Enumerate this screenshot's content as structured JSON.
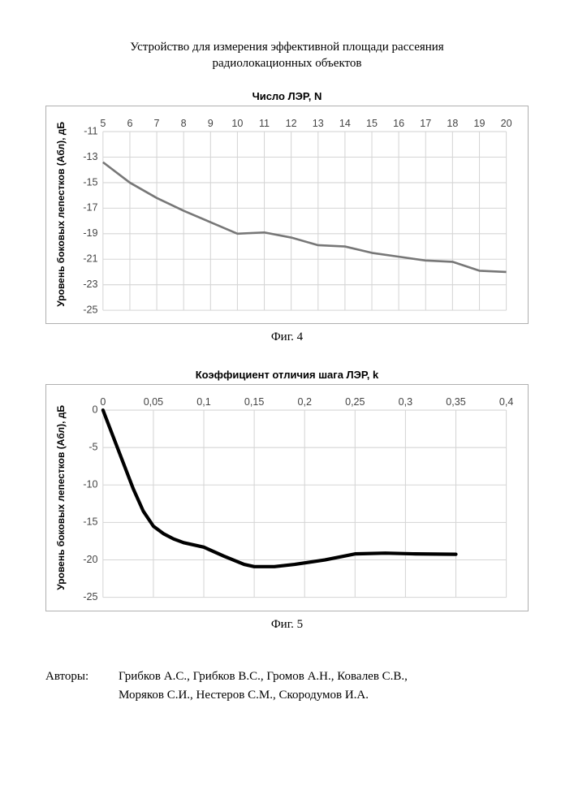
{
  "doc": {
    "title_line1": "Устройство для измерения эффективной площади рассеяния",
    "title_line2": "радиолокационных объектов"
  },
  "chart4": {
    "type": "line",
    "title": "Число ЛЭР, N",
    "ylabel": "Уровень боковых лепестков (Aбл), дБ",
    "fig_label": "Фиг. 4",
    "x_ticks": [
      5,
      6,
      7,
      8,
      9,
      10,
      11,
      12,
      13,
      14,
      15,
      16,
      17,
      18,
      19,
      20
    ],
    "y_ticks": [
      -11,
      -13,
      -15,
      -17,
      -19,
      -21,
      -23,
      -25
    ],
    "xlim": [
      5,
      20
    ],
    "ylim": [
      -25,
      -11
    ],
    "line_color": "#777777",
    "line_width": 2.5,
    "background_color": "#ffffff",
    "grid_color": "#d5d5d5",
    "tick_font_size": 12,
    "points": [
      [
        5,
        -13.4
      ],
      [
        6,
        -15.0
      ],
      [
        7,
        -16.2
      ],
      [
        8,
        -17.2
      ],
      [
        9,
        -18.1
      ],
      [
        10,
        -19.0
      ],
      [
        11,
        -18.9
      ],
      [
        12,
        -19.3
      ],
      [
        13,
        -19.9
      ],
      [
        14,
        -20.0
      ],
      [
        15,
        -20.5
      ],
      [
        16,
        -20.8
      ],
      [
        17,
        -21.1
      ],
      [
        18,
        -21.2
      ],
      [
        19,
        -21.9
      ],
      [
        20,
        -22.0
      ]
    ]
  },
  "chart5": {
    "type": "line",
    "title": "Коэффициент отличия шага ЛЭР, k",
    "ylabel": "Уровень боковых лепестков (Aбл), дБ",
    "fig_label": "Фиг. 5",
    "x_ticks": [
      0,
      0.05,
      0.1,
      0.15,
      0.2,
      0.25,
      0.3,
      0.35,
      0.4
    ],
    "x_tick_labels": [
      "0",
      "0,05",
      "0,1",
      "0,15",
      "0,2",
      "0,25",
      "0,3",
      "0,35",
      "0,4"
    ],
    "y_ticks": [
      0,
      -5,
      -10,
      -15,
      -20,
      -25
    ],
    "xlim": [
      0,
      0.4
    ],
    "ylim": [
      -25,
      0
    ],
    "line_color": "#000000",
    "line_width": 4,
    "background_color": "#ffffff",
    "grid_color": "#d5d5d5",
    "tick_font_size": 12,
    "points": [
      [
        0,
        0
      ],
      [
        0.01,
        -3.5
      ],
      [
        0.02,
        -7.0
      ],
      [
        0.03,
        -10.5
      ],
      [
        0.04,
        -13.5
      ],
      [
        0.05,
        -15.5
      ],
      [
        0.06,
        -16.5
      ],
      [
        0.07,
        -17.2
      ],
      [
        0.08,
        -17.7
      ],
      [
        0.1,
        -18.3
      ],
      [
        0.12,
        -19.5
      ],
      [
        0.14,
        -20.6
      ],
      [
        0.15,
        -20.9
      ],
      [
        0.17,
        -20.9
      ],
      [
        0.19,
        -20.6
      ],
      [
        0.22,
        -20.0
      ],
      [
        0.25,
        -19.2
      ],
      [
        0.28,
        -19.1
      ],
      [
        0.31,
        -19.2
      ],
      [
        0.35,
        -19.25
      ]
    ]
  },
  "authors": {
    "label": "Авторы:",
    "line1": "Грибков А.С., Грибков В.С., Громов А.Н., Ковалев С.В.,",
    "line2": "Моряков С.И., Нестеров С.М., Скородумов И.А."
  }
}
